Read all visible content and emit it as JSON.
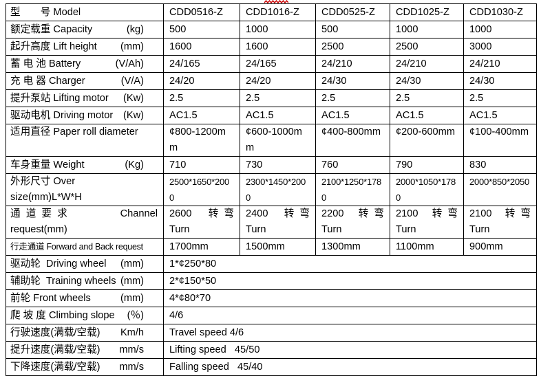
{
  "decorations": {
    "squiggle_color": "#cc0000"
  },
  "table": {
    "models": [
      "CDD0516-Z",
      "CDD1016-Z",
      "CDD0525-Z",
      "CDD1025-Z",
      "CDD1030-Z"
    ],
    "rows": [
      {
        "label": "型　　号 Model",
        "unit": "",
        "values": [
          "CDD0516-Z",
          "CDD1016-Z",
          "CDD0525-Z",
          "CDD1025-Z",
          "CDD1030-Z"
        ]
      },
      {
        "label": "额定载重 Capacity",
        "unit": "(kg)",
        "values": [
          "500",
          "1000",
          "500",
          "1000",
          "1000"
        ]
      },
      {
        "label": "起升高度 Lift height",
        "unit": "(mm)",
        "values": [
          "1600",
          "1600",
          "2500",
          "2500",
          "3000"
        ]
      },
      {
        "label": "蓄 电 池 Battery",
        "unit": "(V/Ah)",
        "values": [
          "24/165",
          "24/165",
          "24/210",
          "24/210",
          "24/210"
        ]
      },
      {
        "label": "充 电 器 Charger",
        "unit": "(V/A)",
        "values": [
          "24/20",
          "24/20",
          "24/30",
          "24/30",
          "24/30"
        ]
      },
      {
        "label": "提升泵站 Lifting motor",
        "unit": "(Kw)",
        "values": [
          "2.5",
          "2.5",
          "2.5",
          "2.5",
          "2.5"
        ]
      },
      {
        "label": "驱动电机 Driving motor",
        "unit": "(Kw)",
        "values": [
          "AC1.5",
          "AC1.5",
          "AC1.5",
          "AC1.5",
          "AC1.5"
        ]
      },
      {
        "label": "适用直径 Paper roll diameter",
        "unit": "",
        "tall": true,
        "values": [
          "¢800-1200m\nm",
          "¢600-1000m\nm",
          "¢400-800mm",
          "¢200-600mm",
          "¢100-400mm"
        ]
      },
      {
        "label": "车身重量 Weight",
        "unit": "(Kg)",
        "values": [
          "710",
          "730",
          "760",
          "790",
          "830"
        ]
      },
      {
        "label": "外形尺寸 Over size(mm)L*W*H",
        "unit": "",
        "tall": true,
        "small_values": true,
        "values": [
          "2500*1650*200\n0",
          "2300*1450*200\n0",
          "2100*1250*178\n0",
          "2000*1050*178\n0",
          "2000*850*2050"
        ]
      },
      {
        "label": "通  道  要  求",
        "unit": "Channel",
        "label2": "request(mm)",
        "tall": true,
        "type": "channel",
        "values": [
          {
            "n": "2600",
            "zh": "转  弯",
            "l2": "Turn"
          },
          {
            "n": "2400",
            "zh": "转  弯",
            "l2": "Turn"
          },
          {
            "n": "2200",
            "zh": "转  弯",
            "l2": "Turn"
          },
          {
            "n": "2100",
            "zh": "转  弯",
            "l2": "Turn"
          },
          {
            "n": "2100",
            "zh": "转  弯",
            "l2": "Turn"
          }
        ]
      },
      {
        "label": "行走通道 Forward and Back request",
        "unit": "",
        "condensed": true,
        "values": [
          "1700mm",
          "1500mm",
          "1300mm",
          "1100mm",
          "900mm"
        ]
      },
      {
        "label": "驱动轮  Driving wheel",
        "unit": "(mm)",
        "span": true,
        "value": "1*¢250*80"
      },
      {
        "label": "辅助轮  Training wheels",
        "unit": "(mm)",
        "span": true,
        "value": "2*¢150*50"
      },
      {
        "label": "前轮 Front wheels",
        "unit": "(mm)",
        "span": true,
        "value": "4*¢80*70"
      },
      {
        "label": "爬 坡 度 Climbing slope",
        "unit": "(％)",
        "span": true,
        "value": "4/6"
      },
      {
        "label": "行驶速度(满载/空载)",
        "unit": "Km/h",
        "span": true,
        "value": "Travel speed 4/6"
      },
      {
        "label": "提升速度(满载/空载)",
        "unit": "mm/s",
        "span": true,
        "value": "Lifting speed   45/50"
      },
      {
        "label": "下降速度(满载/空载)",
        "unit": "mm/s",
        "span": true,
        "value": "Falling speed   45/40"
      }
    ]
  }
}
